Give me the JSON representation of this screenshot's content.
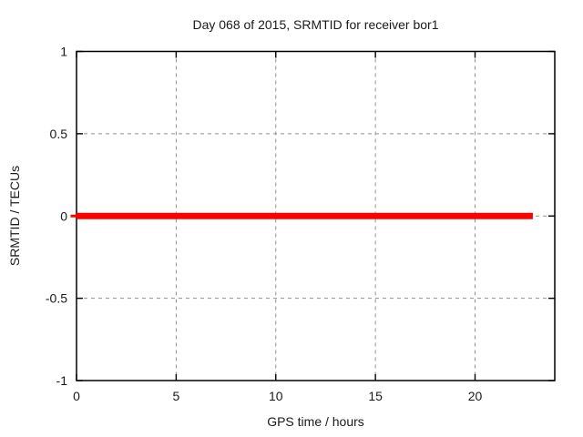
{
  "chart_data": {
    "type": "line",
    "title": "Day 068 of 2015, SRMTID for receiver bor1",
    "xlabel": "GPS time / hours",
    "ylabel": "SRMTID / TECUs",
    "xlim": [
      0,
      24
    ],
    "ylim": [
      -1,
      1
    ],
    "xticks": [
      0,
      5,
      10,
      15,
      20
    ],
    "xtick_labels": [
      "0",
      "5",
      "10",
      "15",
      "20"
    ],
    "yticks": [
      -1,
      -0.5,
      0,
      0.5,
      1
    ],
    "ytick_labels": [
      "-1",
      "-0.5",
      "0",
      "0.5",
      "1"
    ],
    "grid": true,
    "legend_position": "none",
    "series": [
      {
        "name": "SRMTID",
        "color": "#ff0000",
        "x_start": 0,
        "x_end": 22.9,
        "y_value": 0
      }
    ],
    "colors": {
      "grid": "#909090",
      "border": "#000000",
      "text": "#1a1a1a",
      "background": "#ffffff"
    }
  }
}
